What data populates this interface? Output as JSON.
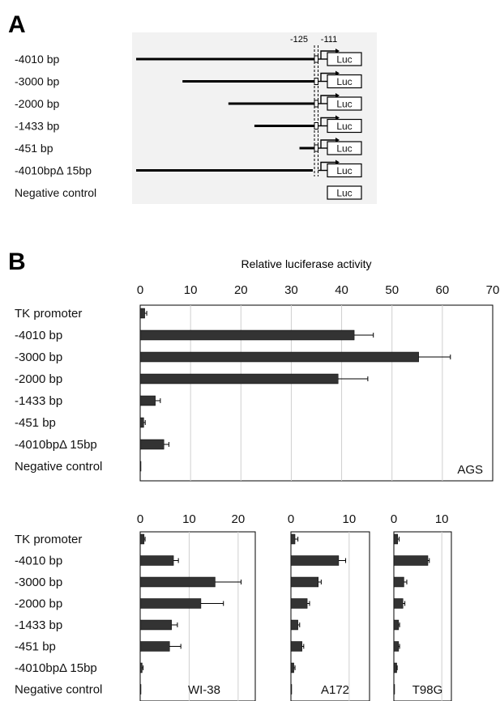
{
  "panel_a": {
    "letter": "A",
    "marker_labels": [
      "-125",
      "-111"
    ],
    "luc_label": "Luc",
    "constructs": [
      {
        "label": "-4010 bp",
        "start_bp": -4010,
        "deletion": false,
        "has_promoter": true
      },
      {
        "label": "-3000 bp",
        "start_bp": -3000,
        "deletion": false,
        "has_promoter": true
      },
      {
        "label": "-2000 bp",
        "start_bp": -2000,
        "deletion": false,
        "has_promoter": true
      },
      {
        "label": "-1433 bp",
        "start_bp": -1433,
        "deletion": false,
        "has_promoter": true
      },
      {
        "label": "-451 bp",
        "start_bp": -451,
        "deletion": false,
        "has_promoter": true
      },
      {
        "label": "-4010bpΔ 15bp",
        "start_bp": -4010,
        "deletion": true,
        "has_promoter": true
      },
      {
        "label": "Negative control",
        "start_bp": null,
        "deletion": false,
        "has_promoter": false
      }
    ]
  },
  "panel_b": {
    "letter": "B",
    "xlabel": "Relative luciferase activity"
  },
  "chart_data": [
    {
      "type": "bar",
      "orientation": "horizontal",
      "title": "",
      "xlabel": "Relative luciferase activity",
      "xlim": [
        0,
        70
      ],
      "xticks": [
        0,
        10,
        20,
        30,
        40,
        50,
        60,
        70
      ],
      "grid": true,
      "cell_label": "AGS",
      "categories": [
        "TK promoter",
        "-4010 bp",
        "-3000 bp",
        "-2000 bp",
        "-1433 bp",
        "-451 bp",
        "-4010bpΔ 15bp",
        "Negative control"
      ],
      "values": [
        0.9,
        42.5,
        55.3,
        39.3,
        3.0,
        0.7,
        4.7,
        0.1
      ],
      "errors": [
        0.4,
        3.8,
        6.3,
        5.9,
        1.0,
        0.3,
        1.0,
        0.0
      ],
      "bar_color": "#333333"
    },
    {
      "type": "bar",
      "orientation": "horizontal",
      "title": "",
      "xlim": [
        0,
        23.5
      ],
      "xticks": [
        0,
        10,
        20
      ],
      "grid": true,
      "cell_label": "WI-38",
      "categories": [
        "TK promoter",
        "-4010 bp",
        "-3000 bp",
        "-2000 bp",
        "-1433 bp",
        "-451 bp",
        "-4010bpΔ 15bp",
        "Negative control"
      ],
      "values": [
        0.8,
        6.8,
        15.3,
        12.4,
        6.4,
        6.0,
        0.4,
        0.05
      ],
      "errors": [
        0.2,
        1.0,
        5.3,
        4.6,
        1.2,
        2.3,
        0.2,
        0.0
      ],
      "bar_color": "#333333"
    },
    {
      "type": "bar",
      "orientation": "horizontal",
      "title": "",
      "xlim": [
        0,
        13.5
      ],
      "xticks": [
        0,
        10
      ],
      "grid": true,
      "cell_label": "A172",
      "categories": [
        "TK promoter",
        "-4010 bp",
        "-3000 bp",
        "-2000 bp",
        "-1433 bp",
        "-451 bp",
        "-4010bpΔ 15bp",
        "Negative control"
      ],
      "values": [
        0.7,
        8.2,
        4.7,
        2.8,
        1.2,
        1.9,
        0.5,
        0.05
      ],
      "errors": [
        0.5,
        1.2,
        0.5,
        0.4,
        0.3,
        0.3,
        0.2,
        0.0
      ],
      "bar_color": "#333333"
    },
    {
      "type": "bar",
      "orientation": "horizontal",
      "title": "",
      "xlim": [
        0,
        12
      ],
      "xticks": [
        0,
        10
      ],
      "grid": true,
      "cell_label": "T98G",
      "categories": [
        "TK promoter",
        "-4010 bp",
        "-3000 bp",
        "-2000 bp",
        "-1433 bp",
        "-451 bp",
        "-4010bpΔ 15bp",
        "Negative control"
      ],
      "values": [
        0.8,
        7.1,
        2.1,
        1.9,
        1.0,
        1.0,
        0.6,
        0.0
      ],
      "errors": [
        0.3,
        0.3,
        0.6,
        0.4,
        0.2,
        0.2,
        0.1,
        0.0
      ],
      "bar_color": "#333333"
    }
  ]
}
